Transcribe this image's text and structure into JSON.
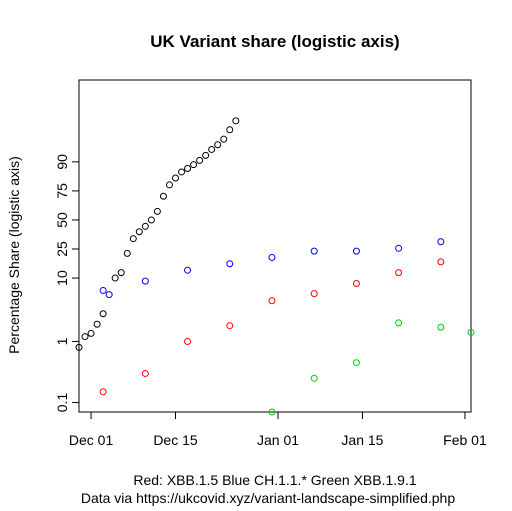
{
  "chart_data": {
    "type": "scatter",
    "title": "UK Variant share (logistic axis)",
    "ylabel": "Percentage Share (logistic axis)",
    "xlabel": "",
    "y_scale": "logit",
    "grid": false,
    "ylim": [
      0.07,
      99.5
    ],
    "xlim": [
      "2022-11-29",
      "2023-02-02"
    ],
    "x_ticks": [
      {
        "date": "2022-12-01",
        "label": "Dec 01"
      },
      {
        "date": "2022-12-15",
        "label": "Dec 15"
      },
      {
        "date": "2023-01-01",
        "label": "Jan 01"
      },
      {
        "date": "2023-01-15",
        "label": "Jan 15"
      },
      {
        "date": "2023-02-01",
        "label": "Feb 01"
      }
    ],
    "y_ticks": [
      {
        "value": 0.1,
        "label": "0.1"
      },
      {
        "value": 1,
        "label": "1"
      },
      {
        "value": 10,
        "label": "10"
      },
      {
        "value": 25,
        "label": "25"
      },
      {
        "value": 50,
        "label": "50"
      },
      {
        "value": 75,
        "label": "75"
      },
      {
        "value": 90,
        "label": "90"
      }
    ],
    "series": [
      {
        "color": "#000000",
        "points": [
          {
            "x": "2022-11-29",
            "y": 0.8
          },
          {
            "x": "2022-11-30",
            "y": 1.2
          },
          {
            "x": "2022-12-01",
            "y": 1.35
          },
          {
            "x": "2022-12-02",
            "y": 1.9
          },
          {
            "x": "2022-12-03",
            "y": 2.8
          },
          {
            "x": "2022-12-05",
            "y": 10
          },
          {
            "x": "2022-12-06",
            "y": 12
          },
          {
            "x": "2022-12-07",
            "y": 22
          },
          {
            "x": "2022-12-08",
            "y": 33
          },
          {
            "x": "2022-12-09",
            "y": 39
          },
          {
            "x": "2022-12-10",
            "y": 44
          },
          {
            "x": "2022-12-11",
            "y": 50
          },
          {
            "x": "2022-12-12",
            "y": 58
          },
          {
            "x": "2022-12-13",
            "y": 71
          },
          {
            "x": "2022-12-14",
            "y": 79
          },
          {
            "x": "2022-12-15",
            "y": 83
          },
          {
            "x": "2022-12-16",
            "y": 86
          },
          {
            "x": "2022-12-17",
            "y": 87.5
          },
          {
            "x": "2022-12-18",
            "y": 89
          },
          {
            "x": "2022-12-19",
            "y": 90.5
          },
          {
            "x": "2022-12-20",
            "y": 92
          },
          {
            "x": "2022-12-21",
            "y": 93.5
          },
          {
            "x": "2022-12-22",
            "y": 94.5
          },
          {
            "x": "2022-12-23",
            "y": 95.5
          },
          {
            "x": "2022-12-24",
            "y": 96.8
          },
          {
            "x": "2022-12-25",
            "y": 97.7
          }
        ]
      },
      {
        "color": "#0000ff",
        "points": [
          {
            "x": "2022-12-03",
            "y": 6.5
          },
          {
            "x": "2022-12-04",
            "y": 5.6
          },
          {
            "x": "2022-12-10",
            "y": 9
          },
          {
            "x": "2022-12-17",
            "y": 13
          },
          {
            "x": "2022-12-24",
            "y": 16
          },
          {
            "x": "2022-12-31",
            "y": 19.5
          },
          {
            "x": "2023-01-07",
            "y": 23.5
          },
          {
            "x": "2023-01-14",
            "y": 23.5
          },
          {
            "x": "2023-01-21",
            "y": 25.5
          },
          {
            "x": "2023-01-28",
            "y": 30.5
          }
        ]
      },
      {
        "color": "#ff0000",
        "points": [
          {
            "x": "2022-12-03",
            "y": 0.15
          },
          {
            "x": "2022-12-10",
            "y": 0.3
          },
          {
            "x": "2022-12-17",
            "y": 1.0
          },
          {
            "x": "2022-12-24",
            "y": 1.8
          },
          {
            "x": "2022-12-31",
            "y": 4.5
          },
          {
            "x": "2023-01-07",
            "y": 5.8
          },
          {
            "x": "2023-01-14",
            "y": 8.3
          },
          {
            "x": "2023-01-21",
            "y": 12
          },
          {
            "x": "2023-01-28",
            "y": 17
          }
        ]
      },
      {
        "color": "#00cc00",
        "points": [
          {
            "x": "2022-12-31",
            "y": 0.07
          },
          {
            "x": "2023-01-07",
            "y": 0.25
          },
          {
            "x": "2023-01-14",
            "y": 0.45
          },
          {
            "x": "2023-01-21",
            "y": 2.0
          },
          {
            "x": "2023-01-28",
            "y": 1.7
          },
          {
            "x": "2023-02-02",
            "y": 1.4
          }
        ]
      }
    ],
    "legend_text": "Red: XBB.1.5         Blue CH.1.1.*    Green XBB.1.9.1",
    "source_text": "Data via https://ukcovid.xyz/variant-landscape-simplified.php"
  }
}
